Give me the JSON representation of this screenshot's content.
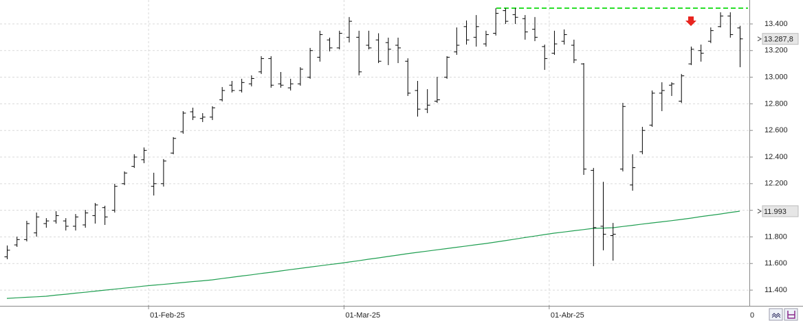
{
  "chart_data": {
    "type": "ohlc",
    "categories": [
      null,
      null,
      null,
      null,
      null,
      null,
      null,
      null,
      null,
      null,
      null,
      null,
      null,
      null,
      null,
      "01-Feb-25",
      null,
      null,
      null,
      null,
      null,
      null,
      null,
      null,
      null,
      null,
      null,
      null,
      null,
      null,
      null,
      null,
      null,
      null,
      null,
      "01-Mar-25",
      null,
      null,
      null,
      null,
      null,
      null,
      null,
      null,
      null,
      null,
      null,
      null,
      null,
      null,
      null,
      null,
      null,
      null,
      null,
      null,
      "01-Abr-25",
      null,
      null,
      null,
      null,
      null,
      null,
      null,
      null,
      null,
      null,
      null,
      null,
      null,
      null,
      null,
      null,
      null,
      null,
      null
    ],
    "x_end_label": "0",
    "open": [
      11650,
      11740,
      11780,
      11830,
      11900,
      11920,
      11920,
      11880,
      11890,
      11960,
      12020,
      12000,
      12200,
      12330,
      12380,
      12180,
      12200,
      12430,
      12590,
      12740,
      12690,
      12700,
      12830,
      12940,
      12900,
      12950,
      13040,
      13140,
      12950,
      12920,
      12950,
      13000,
      13150,
      13280,
      13220,
      13300,
      13300,
      13240,
      13280,
      13260,
      13240,
      13120,
      12900,
      12760,
      12820,
      13000,
      13190,
      13380,
      13300,
      13250,
      13330,
      13500,
      13470,
      13440,
      13360,
      13230,
      13180,
      13270,
      13240,
      13100,
      12300,
      11880,
      11810,
      12310,
      12190,
      12440,
      12640,
      12880,
      12940,
      12820,
      13100,
      13200,
      13270,
      13380,
      13460,
      13370
    ],
    "high": [
      11735,
      11802,
      11921,
      11983,
      11941,
      11993,
      11941,
      11972,
      12003,
      12055,
      12034,
      12199,
      12292,
      12421,
      12472,
      12282,
      12385,
      12550,
      12745,
      12771,
      12730,
      12782,
      12926,
      12972,
      12988,
      13014,
      13158,
      13158,
      13039,
      12988,
      13075,
      13220,
      13349,
      13297,
      13349,
      13452,
      13349,
      13349,
      13330,
      13297,
      13297,
      13142,
      12972,
      12910,
      13003,
      13158,
      13374,
      13426,
      13467,
      13349,
      13519,
      13519,
      13519,
      13467,
      13452,
      13245,
      13349,
      13359,
      13282,
      13106,
      12318,
      12214,
      11905,
      12807,
      12421,
      12627,
      12900,
      12962,
      12962,
      13024,
      13230,
      13245,
      13374,
      13488,
      13488,
      13386
    ],
    "low": [
      11632,
      11725,
      11766,
      11802,
      11869,
      11900,
      11848,
      11848,
      11869,
      11900,
      11890,
      11983,
      12189,
      12318,
      12354,
      12111,
      12178,
      12421,
      12575,
      12678,
      12663,
      12678,
      12818,
      12885,
      12885,
      12931,
      13024,
      12921,
      12921,
      12900,
      12936,
      12988,
      13117,
      13194,
      13209,
      13261,
      13014,
      13209,
      13106,
      13091,
      13106,
      12859,
      12704,
      12730,
      12807,
      12988,
      13168,
      13245,
      13230,
      13230,
      13313,
      13400,
      13400,
      13282,
      13271,
      13055,
      13168,
      13245,
      13106,
      12266,
      11580,
      11699,
      11622,
      12292,
      12147,
      12421,
      12627,
      12745,
      12859,
      12806,
      13091,
      13117,
      13256,
      13374,
      13297,
      13075
    ],
    "close": [
      11700,
      11780,
      11900,
      11950,
      11920,
      11960,
      11880,
      11950,
      11980,
      12040,
      11950,
      12180,
      12280,
      12400,
      12450,
      12200,
      12370,
      12540,
      12730,
      12700,
      12700,
      12770,
      12900,
      12900,
      12960,
      12990,
      13140,
      12940,
      12940,
      12950,
      13060,
      13200,
      13320,
      13220,
      13330,
      13420,
      13040,
      13220,
      13120,
      13210,
      13220,
      12880,
      12760,
      12790,
      12830,
      13150,
      13240,
      13280,
      13380,
      13320,
      13480,
      13420,
      13450,
      13340,
      13300,
      13140,
      13250,
      13320,
      13130,
      12310,
      11870,
      11820,
      11820,
      12780,
      12320,
      12600,
      12880,
      12900,
      12950,
      13010,
      13210,
      13180,
      13350,
      13460,
      13320,
      13287.8
    ],
    "bar_color": "#000000",
    "ma": {
      "color": "#1e9e50",
      "values": [
        11338,
        11342,
        11346,
        11350,
        11354,
        11362,
        11369,
        11377,
        11384,
        11392,
        11400,
        11407,
        11415,
        11422,
        11430,
        11437,
        11443,
        11450,
        11457,
        11464,
        11470,
        11477,
        11487,
        11496,
        11506,
        11515,
        11525,
        11534,
        11544,
        11554,
        11563,
        11573,
        11582,
        11592,
        11601,
        11611,
        11621,
        11632,
        11642,
        11653,
        11663,
        11674,
        11684,
        11693,
        11703,
        11712,
        11722,
        11731,
        11741,
        11750,
        11761,
        11772,
        11783,
        11795,
        11806,
        11817,
        11828,
        11837,
        11846,
        11855,
        11864,
        11866,
        11869,
        11878,
        11887,
        11896,
        11905,
        11913,
        11922,
        11931,
        11941,
        11952,
        11962,
        11972,
        11983,
        11993
      ]
    },
    "resistance": {
      "color": "#22dd22",
      "value": 13519
    },
    "price_markers": [
      {
        "value": 13287.8,
        "label": "13.287,8"
      },
      {
        "value": 11993,
        "label": "11.993"
      }
    ],
    "ylim": [
      11287,
      13580
    ],
    "yticks": [
      {
        "value": 11400,
        "label": "11.400"
      },
      {
        "value": 11600,
        "label": "11.600"
      },
      {
        "value": 11800,
        "label": "11.800"
      },
      {
        "value": 12000,
        "label": "12.000"
      },
      {
        "value": 12200,
        "label": "12.200"
      },
      {
        "value": 12400,
        "label": "12.400"
      },
      {
        "value": 12600,
        "label": "12.600"
      },
      {
        "value": 12800,
        "label": "12.800"
      },
      {
        "value": 13000,
        "label": "13.000"
      },
      {
        "value": 13200,
        "label": "13.200"
      },
      {
        "value": 13400,
        "label": "13.400"
      }
    ],
    "grid": true
  }
}
